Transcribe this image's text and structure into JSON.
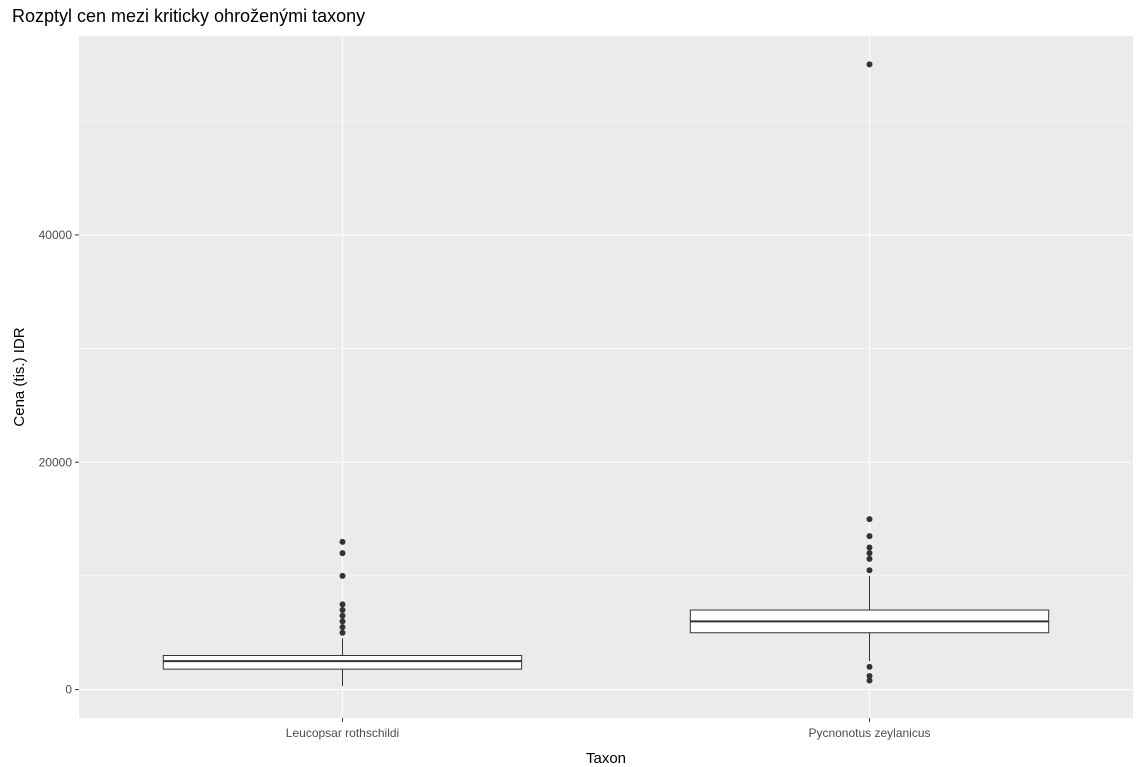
{
  "chart_data": {
    "type": "boxplot",
    "title": "Rozptyl cen mezi kriticky ohroženými taxony",
    "xlabel": "Taxon",
    "ylabel": "Cena (tis.) IDR",
    "y_ticks": [
      0,
      20000,
      40000
    ],
    "y_tick_labels": [
      "0",
      "20000",
      "40000"
    ],
    "ylim": [
      -2500,
      57500
    ],
    "grid": true,
    "colors": {
      "panel_background": "#ebebeb",
      "grid_line": "#ffffff",
      "box_fill": "#ffffff",
      "box_line": "#333333",
      "outlier": "#333333"
    },
    "categories": [
      "Leucopsar rothschildi",
      "Pycnonotus zeylanicus"
    ],
    "boxes": [
      {
        "category": "Leucopsar rothschildi",
        "whisker_low": 300,
        "q1": 1800,
        "median": 2500,
        "q3": 3000,
        "whisker_high": 4500,
        "outliers": [
          5000,
          5500,
          6000,
          6500,
          7000,
          7500,
          10000,
          12000,
          13000
        ]
      },
      {
        "category": "Pycnonotus zeylanicus",
        "whisker_low": 2500,
        "q1": 5000,
        "median": 6000,
        "q3": 7000,
        "whisker_high": 10000,
        "outliers": [
          800,
          1200,
          2000,
          10500,
          11500,
          12000,
          12500,
          13500,
          15000,
          55000
        ]
      }
    ]
  }
}
